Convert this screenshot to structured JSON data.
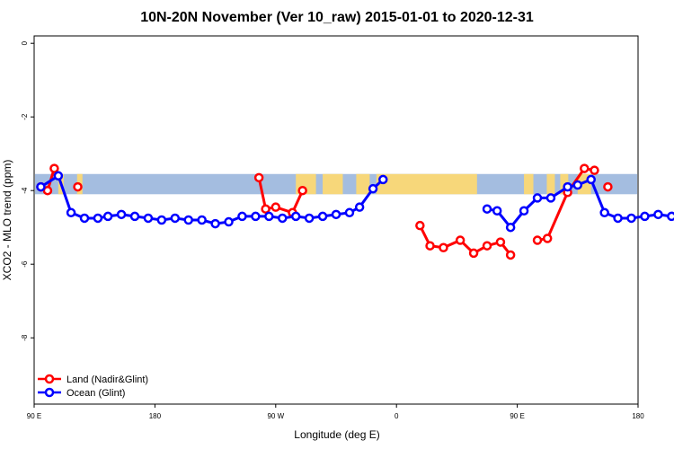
{
  "chart_data": {
    "type": "line",
    "title": "10N-20N November (Ver 10_raw)   2015-01-01 to 2020-12-31",
    "xlabel": "Longitude (deg E)",
    "ylabel": "XCO2 - MLO trend (ppm)",
    "xlim": [
      90,
      450
    ],
    "ylim": [
      -9.8,
      0.2
    ],
    "x_ticks": [
      {
        "x": 90,
        "label": "90 E"
      },
      {
        "x": 180,
        "label": "180"
      },
      {
        "x": 270,
        "label": "90 W"
      },
      {
        "x": 360,
        "label": "0"
      },
      {
        "x": 450,
        "label": "90 E"
      },
      {
        "x": 540,
        "label": "180"
      }
    ],
    "x_tick_labels_in_order": [
      "90 E",
      "180",
      "90 W",
      "0",
      "90 E",
      "180"
    ],
    "x_ticks_data_note": "longitudes as plotted: 90 E, 180, 90 W, 0, 90 E, 180",
    "xlim_plot": [
      90,
      540
    ],
    "y_ticks": [
      0,
      -2,
      -4,
      -6,
      -8
    ],
    "legend_position": "bottom-left",
    "land_band": {
      "ymin": -4.1,
      "ymax": -3.55
    },
    "series": [
      {
        "name": "Land (Nadir&Glint)",
        "color": "#ff0000",
        "segments": [
          {
            "x": [
              95,
              100,
              105
            ],
            "y": [
              -3.9,
              -4.0,
              -3.4
            ]
          },
          {
            "x": [
              122.5
            ],
            "y": [
              -3.9
            ]
          },
          {
            "x": [
              257.5,
              262.5,
              270,
              282.5,
              290
            ],
            "y": [
              -3.65,
              -4.5,
              -4.45,
              -4.6,
              -4.0
            ]
          },
          {
            "x": [
              377.5,
              385,
              395,
              407.5,
              417.5,
              427.5,
              437.5,
              445
            ],
            "y": [
              -4.95,
              -5.5,
              -5.55,
              -5.35,
              -5.7,
              -5.5,
              -5.4,
              -5.75
            ]
          },
          {
            "x": [
              465,
              472.5,
              487.5,
              500,
              507.5
            ],
            "y": [
              -5.35,
              -5.3,
              -4.05,
              -3.4,
              -3.45
            ]
          },
          {
            "x": [
              517.5
            ],
            "y": [
              -3.9
            ]
          }
        ]
      },
      {
        "name": "Ocean (Glint)",
        "color": "#0000ff",
        "segments": [
          {
            "x": [
              95,
              108,
              117.5,
              127.5,
              137.5,
              145,
              155,
              165,
              175,
              185,
              195,
              205,
              215,
              225,
              235,
              245,
              255,
              265,
              275,
              285,
              295,
              305,
              315,
              325,
              332.5,
              342.5,
              350
            ],
            "y": [
              -3.9,
              -3.6,
              -4.6,
              -4.75,
              -4.75,
              -4.7,
              -4.65,
              -4.7,
              -4.75,
              -4.8,
              -4.75,
              -4.8,
              -4.8,
              -4.9,
              -4.85,
              -4.7,
              -4.7,
              -4.7,
              -4.75,
              -4.7,
              -4.75,
              -4.7,
              -4.65,
              -4.6,
              -4.45,
              -3.95,
              -3.7
            ]
          },
          {
            "x": [
              427.5,
              435,
              445,
              455,
              465,
              475,
              487.5,
              495,
              505,
              515,
              525,
              535,
              545,
              555,
              565,
              575,
              585,
              595,
              605
            ],
            "y": [
              -4.5,
              -4.55,
              -5.0,
              -4.55,
              -4.2,
              -4.2,
              -3.9,
              -3.85,
              -3.7,
              -4.6,
              -4.75,
              -4.75,
              -4.7,
              -4.65,
              -4.7,
              -4.75,
              -4.75,
              -4.7,
              -4.75
            ]
          }
        ]
      }
    ]
  },
  "legend": {
    "items": [
      {
        "label": "Land (Nadir&Glint)",
        "color": "#ff0000"
      },
      {
        "label": "Ocean (Glint)",
        "color": "#0000ff"
      }
    ]
  },
  "colors": {
    "ocean_band": "#a4bde0",
    "land_fill": "#f7d77a",
    "axis": "#000000"
  }
}
